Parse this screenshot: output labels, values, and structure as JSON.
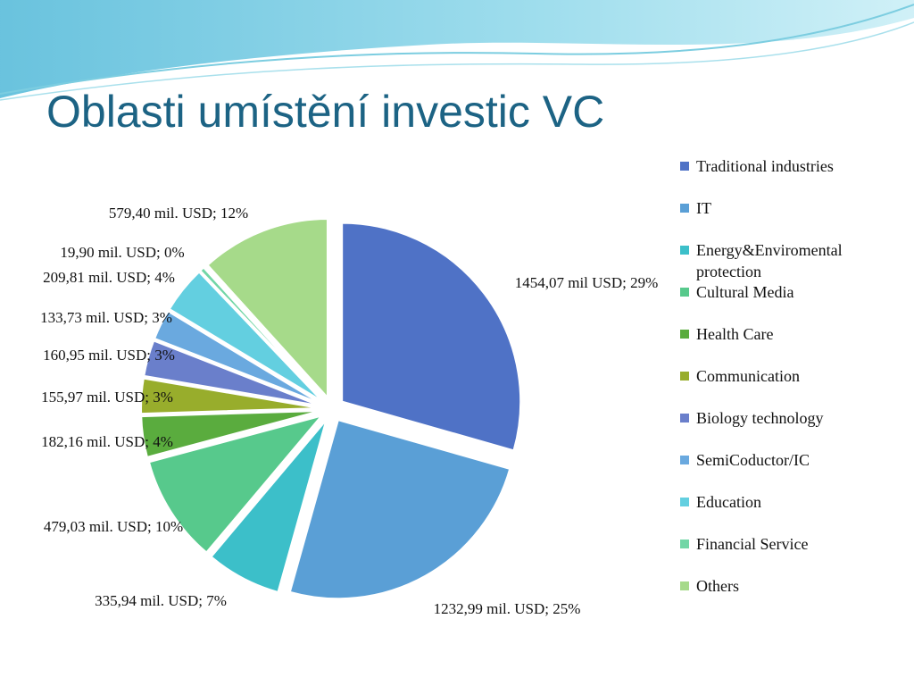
{
  "chart_data": {
    "type": "pie",
    "title": "Oblasti umístění investic VC",
    "categories": [
      "Traditional industries",
      "IT",
      "Energy&Enviromental protection",
      "Cultural Media",
      "Health Care",
      "Communication",
      "Biology technology",
      "SemiCoductor/IC",
      "Education",
      "Financial Service",
      "Others"
    ],
    "values": [
      1454.07,
      1232.99,
      335.94,
      479.03,
      182.16,
      155.97,
      160.95,
      133.73,
      209.81,
      19.9,
      579.4
    ],
    "value_labels": [
      "1454,07 mil USD; 29%",
      "1232,99 mil. USD; 25%",
      "335,94 mil. USD; 7%",
      "479,03 mil. USD; 10%",
      "182,16 mil. USD; 4%",
      "155,97 mil. USD; 3%",
      "160,95 mil. USD; 3%",
      "133,73 mil. USD; 3%",
      "209,81 mil. USD; 4%",
      "19,90 mil. USD; 0%",
      "579,40 mil. USD; 12%"
    ],
    "colors": [
      "#4f72c6",
      "#5a9fd6",
      "#3cbfc9",
      "#57c98c",
      "#5aac3e",
      "#98ad2c",
      "#6a7fcb",
      "#6aa9df",
      "#63cfe0",
      "#72d6a6",
      "#a6da8a"
    ],
    "legend": "right"
  }
}
